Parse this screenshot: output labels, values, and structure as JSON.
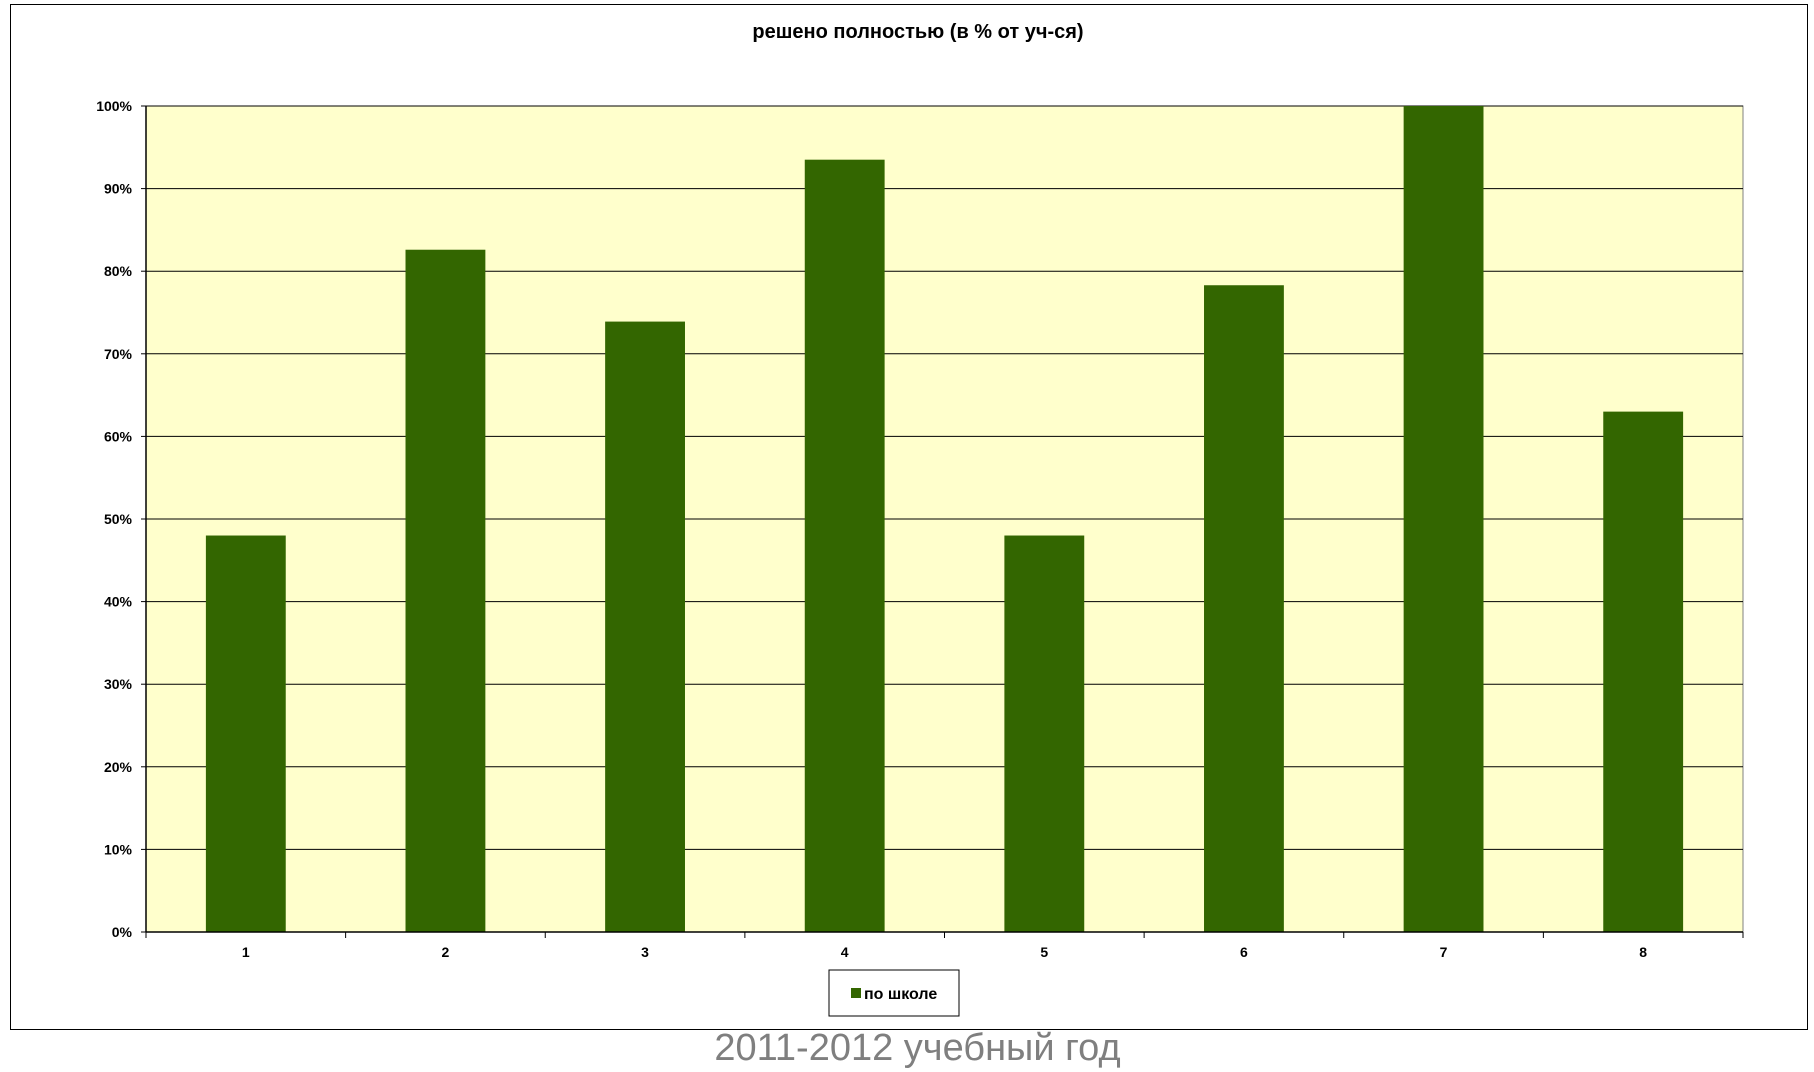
{
  "chart_data": {
    "type": "bar",
    "title": "решено полностью (в % от уч-ся)",
    "xlabel": "",
    "ylabel": "",
    "categories": [
      "1",
      "2",
      "3",
      "4",
      "5",
      "6",
      "7",
      "8"
    ],
    "series": [
      {
        "name": "по школе",
        "values": [
          48,
          82.6,
          73.9,
          93.5,
          48,
          78.3,
          100,
          63
        ]
      }
    ],
    "ylim": [
      0,
      100
    ],
    "yticks": [
      "0%",
      "10%",
      "20%",
      "30%",
      "40%",
      "50%",
      "60%",
      "70%",
      "80%",
      "90%",
      "100%"
    ],
    "grid": true,
    "legend_position": "bottom",
    "colors": {
      "bar": "#336600",
      "plot_background": "#FFFFCC",
      "gridline": "#000000"
    }
  },
  "caption": "2011-2012 учебный год"
}
